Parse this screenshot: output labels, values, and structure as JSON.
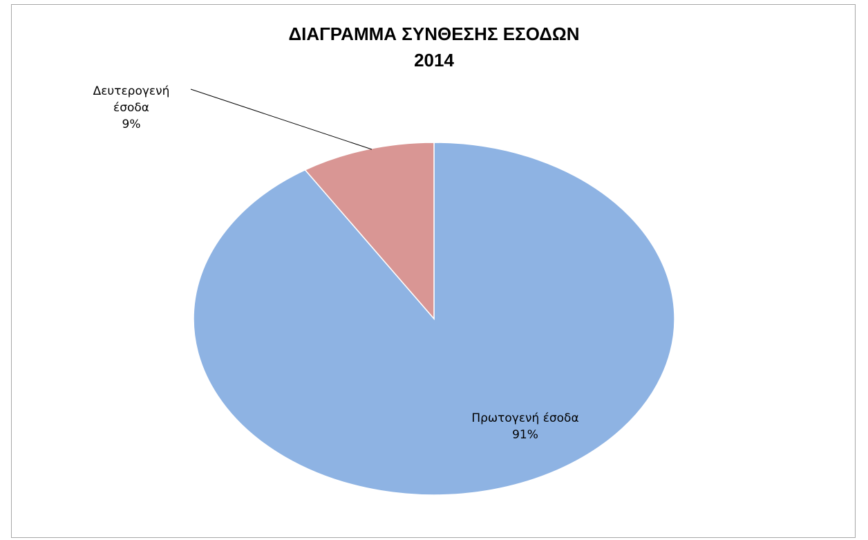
{
  "chart_data": {
    "type": "pie",
    "title_lines": [
      "ΔΙΑΓΡΑΜΜΑ ΣΥΝΘΕΣΗΣ ΕΣΟΔΩΝ",
      "2014"
    ],
    "categories": [
      "Πρωτογενή έσοδα",
      "Δευτερογενή έσοδα"
    ],
    "values": [
      91,
      9
    ],
    "data_labels": [
      {
        "name_lines": [
          "Πρωτογενή έσοδα"
        ],
        "pct": "91%"
      },
      {
        "name_lines": [
          "Δευτερογενή",
          "έσοδα"
        ],
        "pct": "9%"
      }
    ],
    "colors": [
      "#8eb3e3",
      "#d99694"
    ],
    "legend": "none",
    "grid": false
  }
}
